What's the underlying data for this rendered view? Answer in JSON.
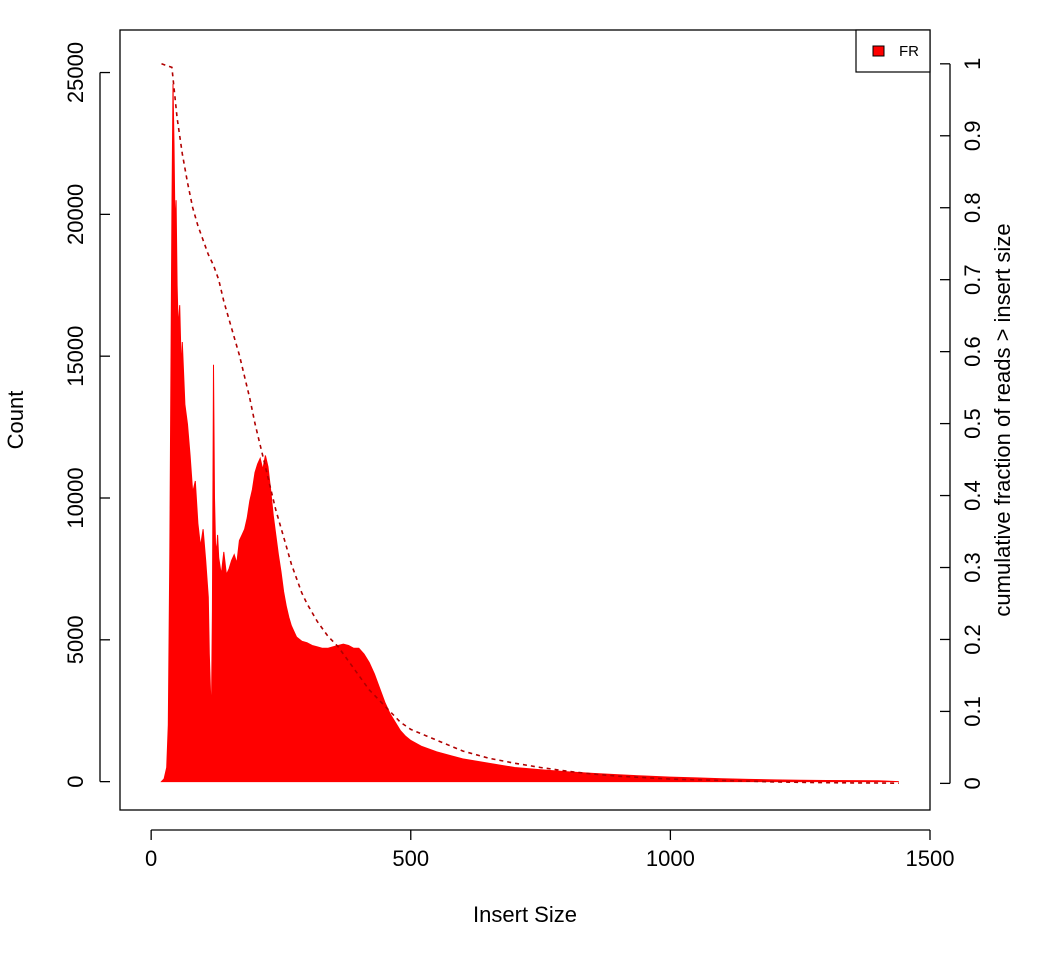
{
  "chart_data": {
    "type": "area",
    "xlabel": "Insert Size",
    "ylabel": "Count",
    "y2label": "cumulative fraction of reads > insert size",
    "xlim": [
      -60,
      1500
    ],
    "ylim": [
      -1000,
      26500
    ],
    "y2lim": [
      -0.037,
      1.047
    ],
    "x_ticks": [
      0,
      500,
      1000,
      1500
    ],
    "y_ticks": [
      0,
      5000,
      10000,
      15000,
      20000,
      25000
    ],
    "y2_ticks": [
      0,
      0.1,
      0.2,
      0.3,
      0.4,
      0.5,
      0.6,
      0.7,
      0.8,
      0.9,
      1
    ],
    "grid": false,
    "legend": {
      "position": "top-right",
      "entries": [
        "FR"
      ]
    },
    "colors": {
      "histogram": "#ff0000",
      "cumulative": "#b00000",
      "axis": "#000000"
    },
    "series": [
      {
        "name": "FR",
        "style": "histogram",
        "x": [
          20,
          25,
          30,
          33,
          36,
          40,
          42,
          44,
          46,
          48,
          50,
          52,
          55,
          58,
          60,
          65,
          70,
          75,
          80,
          85,
          90,
          95,
          100,
          105,
          110,
          112,
          116,
          118,
          120,
          122,
          124,
          126,
          128,
          130,
          135,
          140,
          145,
          150,
          155,
          160,
          165,
          170,
          175,
          180,
          185,
          190,
          195,
          200,
          205,
          210,
          215,
          220,
          225,
          230,
          235,
          240,
          245,
          250,
          255,
          260,
          265,
          270,
          275,
          280,
          290,
          300,
          310,
          320,
          330,
          340,
          350,
          360,
          370,
          380,
          390,
          400,
          410,
          420,
          430,
          440,
          450,
          460,
          470,
          480,
          490,
          500,
          520,
          550,
          580,
          600,
          650,
          700,
          750,
          800,
          850,
          900,
          950,
          1000,
          1050,
          1100,
          1150,
          1200,
          1250,
          1300,
          1350,
          1400,
          1440
        ],
        "values": [
          0,
          100,
          500,
          2000,
          8000,
          20000,
          24600,
          22500,
          19500,
          20500,
          17500,
          16000,
          16800,
          14500,
          15500,
          13300,
          12600,
          11500,
          10200,
          10600,
          9100,
          8300,
          8900,
          7800,
          6500,
          4500,
          2200,
          6000,
          14700,
          10000,
          8400,
          8100,
          8700,
          7900,
          7300,
          8100,
          7300,
          7500,
          7800,
          8000,
          7700,
          8500,
          8700,
          8900,
          9300,
          9900,
          10300,
          10900,
          11200,
          11400,
          11000,
          11500,
          11100,
          10300,
          9400,
          8700,
          8000,
          7400,
          6700,
          6200,
          5800,
          5500,
          5300,
          5100,
          4950,
          4900,
          4800,
          4750,
          4700,
          4700,
          4750,
          4800,
          4850,
          4800,
          4700,
          4700,
          4500,
          4200,
          3800,
          3300,
          2800,
          2400,
          2100,
          1800,
          1600,
          1450,
          1250,
          1050,
          900,
          800,
          650,
          500,
          420,
          350,
          290,
          240,
          200,
          160,
          130,
          100,
          80,
          60,
          50,
          40,
          35,
          30,
          0
        ]
      },
      {
        "name": "cumulative",
        "style": "dashed",
        "axis": "right",
        "x": [
          20,
          40,
          45,
          50,
          60,
          70,
          80,
          90,
          100,
          110,
          120,
          130,
          140,
          150,
          160,
          170,
          180,
          190,
          200,
          210,
          220,
          230,
          240,
          250,
          260,
          270,
          280,
          290,
          300,
          320,
          340,
          360,
          380,
          400,
          420,
          440,
          460,
          480,
          500,
          550,
          600,
          650,
          700,
          750,
          800,
          850,
          900,
          950,
          1000,
          1050,
          1100,
          1150,
          1200,
          1250,
          1300,
          1350,
          1400,
          1440
        ],
        "values": [
          1.0,
          0.995,
          0.96,
          0.925,
          0.875,
          0.835,
          0.8,
          0.775,
          0.755,
          0.735,
          0.72,
          0.7,
          0.67,
          0.645,
          0.62,
          0.595,
          0.565,
          0.535,
          0.5,
          0.47,
          0.44,
          0.41,
          0.38,
          0.355,
          0.33,
          0.305,
          0.285,
          0.265,
          0.25,
          0.225,
          0.205,
          0.19,
          0.17,
          0.15,
          0.13,
          0.115,
          0.1,
          0.085,
          0.075,
          0.06,
          0.045,
          0.035,
          0.028,
          0.022,
          0.017,
          0.013,
          0.01,
          0.008,
          0.006,
          0.005,
          0.004,
          0.003,
          0.002,
          0.0015,
          0.001,
          0.0007,
          0.0005,
          0.0003
        ]
      }
    ]
  }
}
